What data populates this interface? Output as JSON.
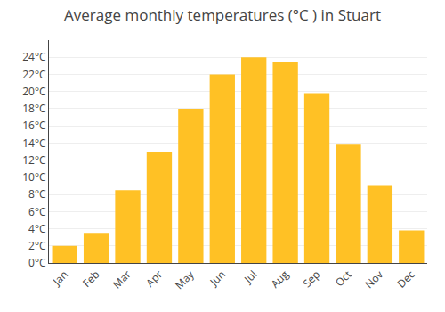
{
  "chart_data": {
    "type": "bar",
    "title": "Average monthly temperatures (°C ) in Stuart",
    "categories": [
      "Jan",
      "Feb",
      "Mar",
      "Apr",
      "May",
      "Jun",
      "Jul",
      "Aug",
      "Sep",
      "Oct",
      "Nov",
      "Dec"
    ],
    "values": [
      2,
      3.5,
      8.5,
      13,
      18,
      22,
      24,
      23.5,
      19.8,
      13.8,
      9,
      3.8
    ],
    "color": "#FFC125",
    "ylim": [
      0,
      26
    ],
    "yticks": [
      {
        "value": 0,
        "label": "0°C"
      },
      {
        "value": 2,
        "label": "2°C"
      },
      {
        "value": 4,
        "label": "4°C"
      },
      {
        "value": 6,
        "label": "6°C"
      },
      {
        "value": 8,
        "label": "8°C"
      },
      {
        "value": 10,
        "label": "10°C"
      },
      {
        "value": 12,
        "label": "12°C"
      },
      {
        "value": 14,
        "label": "14°C"
      },
      {
        "value": 16,
        "label": "16°C"
      },
      {
        "value": 18,
        "label": "18°C"
      },
      {
        "value": 20,
        "label": "20°C"
      },
      {
        "value": 22,
        "label": "22°C"
      },
      {
        "value": 24,
        "label": "24°C"
      }
    ],
    "grid": true
  }
}
